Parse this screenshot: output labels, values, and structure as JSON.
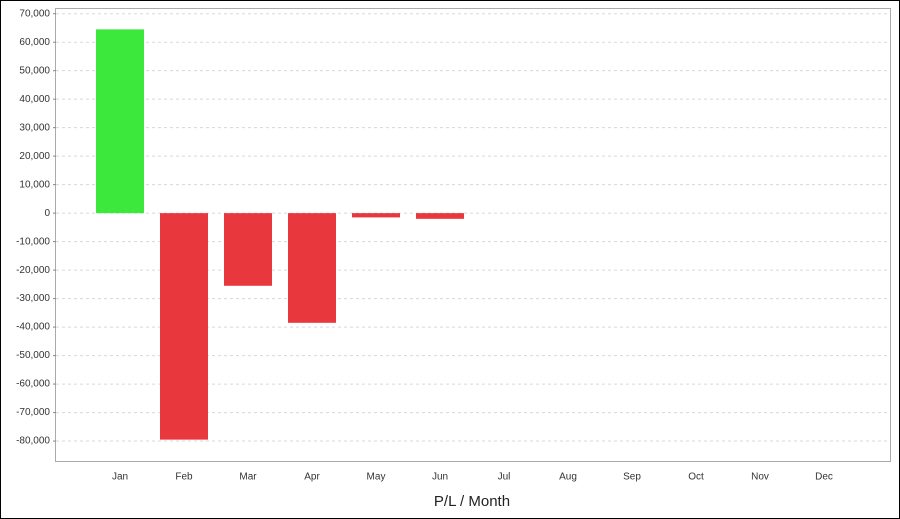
{
  "chart_data": {
    "type": "bar",
    "x_label": "P/L / Month",
    "categories": [
      "Jan",
      "Feb",
      "Mar",
      "Apr",
      "May",
      "Jun",
      "Jul",
      "Aug",
      "Sep",
      "Oct",
      "Nov",
      "Dec"
    ],
    "values": [
      64500,
      -79500,
      -25500,
      -38500,
      -1500,
      -2000,
      null,
      null,
      null,
      null,
      null,
      null
    ],
    "positive_color": "#3de83d",
    "negative_color": "#e8383d",
    "ylim": [
      -87000,
      72000
    ],
    "yticks": [
      {
        "value": 70000,
        "label": "70,000"
      },
      {
        "value": 60000,
        "label": "60,000"
      },
      {
        "value": 50000,
        "label": "50,000"
      },
      {
        "value": 40000,
        "label": "40,000"
      },
      {
        "value": 30000,
        "label": "30,000"
      },
      {
        "value": 20000,
        "label": "20,000"
      },
      {
        "value": 10000,
        "label": "10,000"
      },
      0,
      {
        "value": -10000,
        "label": "-10,000"
      },
      {
        "value": -20000,
        "label": "-20,000"
      },
      {
        "value": -30000,
        "label": "-30,000"
      },
      {
        "value": -40000,
        "label": "-40,000"
      },
      {
        "value": -50000,
        "label": "-50,000"
      },
      {
        "value": -60000,
        "label": "-60,000"
      },
      {
        "value": -70000,
        "label": "-70,000"
      },
      {
        "value": -80000,
        "label": "-80,000"
      }
    ],
    "grid": true
  }
}
